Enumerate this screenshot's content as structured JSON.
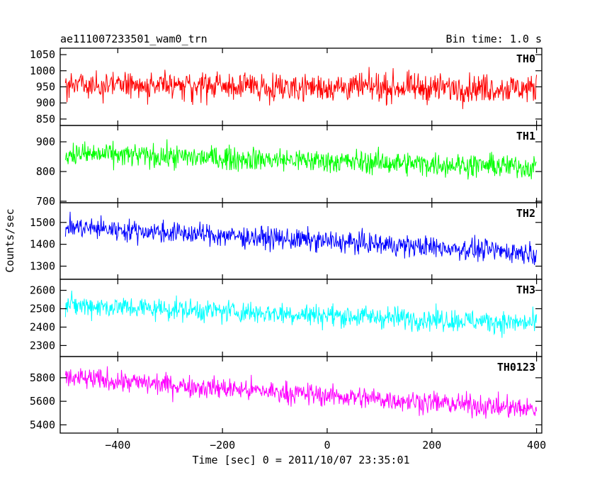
{
  "header": {
    "left_title": "ae111007233501_wam0_trn",
    "right_title": "Bin time: 1.0 s"
  },
  "chart_data": {
    "type": "line",
    "ylabel": "Counts/sec",
    "xlabel": "Time [sec] 0 = 2011/10/07 23:35:01",
    "xlim": [
      -510,
      410
    ],
    "x_ticks": [
      -400,
      -200,
      0,
      200,
      400
    ],
    "x_tick_labels": [
      "−400",
      "−200",
      "0",
      "200",
      "400"
    ],
    "x_start": -500,
    "x_end": 400,
    "bin_seconds": 1.0,
    "grid": false,
    "panels": [
      {
        "label": "TH0",
        "color": "#ff0000",
        "ylim": [
          830,
          1070
        ],
        "y_ticks": [
          850,
          900,
          950,
          1000,
          1050
        ],
        "y_tick_labels": [
          "850",
          "900",
          "950",
          "1000",
          "1050"
        ],
        "mean_start": 955,
        "mean_end": 945,
        "spread": 40
      },
      {
        "label": "TH1",
        "color": "#00ff00",
        "ylim": [
          695,
          955
        ],
        "y_ticks": [
          700,
          800,
          900
        ],
        "y_tick_labels": [
          "700",
          "800",
          "900"
        ],
        "mean_start": 860,
        "mean_end": 815,
        "spread": 36
      },
      {
        "label": "TH2",
        "color": "#0000ff",
        "ylim": [
          1240,
          1590
        ],
        "y_ticks": [
          1300,
          1400,
          1500
        ],
        "y_tick_labels": [
          "1300",
          "1400",
          "1500"
        ],
        "mean_start": 1480,
        "mean_end": 1360,
        "spread": 45
      },
      {
        "label": "TH3",
        "color": "#00ffff",
        "ylim": [
          2240,
          2660
        ],
        "y_ticks": [
          2300,
          2400,
          2500,
          2600
        ],
        "y_tick_labels": [
          "2300",
          "2400",
          "2500",
          "2600"
        ],
        "mean_start": 2520,
        "mean_end": 2420,
        "spread": 55
      },
      {
        "label": "TH0123",
        "color": "#ff00ff",
        "ylim": [
          5330,
          5980
        ],
        "y_ticks": [
          5400,
          5600,
          5800
        ],
        "y_tick_labels": [
          "5400",
          "5600",
          "5800"
        ],
        "mean_start": 5800,
        "mean_end": 5530,
        "spread": 85
      }
    ]
  }
}
